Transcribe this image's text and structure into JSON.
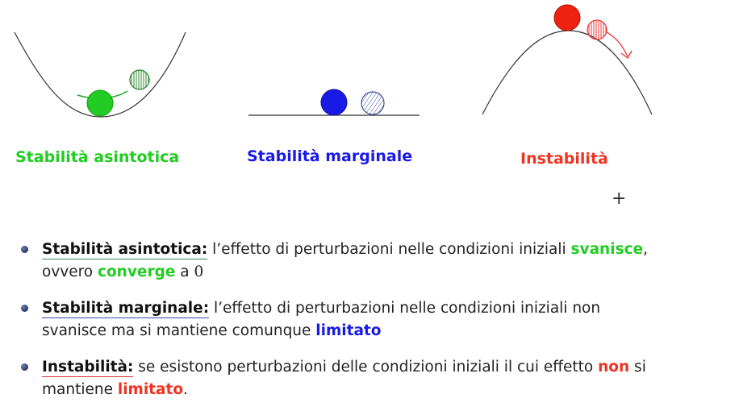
{
  "colors": {
    "green": "#22cc22",
    "blue": "#1a1ae6",
    "red": "#ee3322"
  },
  "captions": {
    "asymptotic": "Stabilità asintotica",
    "marginal": "Stabilità marginale",
    "instability": "Instabilità"
  },
  "cursor_glyph": "+",
  "bullets": [
    {
      "term": "Stabilità asintotica:",
      "t1": " l’effetto di perturbazioni nelle condizioni iniziali ",
      "h1": "svanisce",
      "t2": ",",
      "t3": "ovvero ",
      "h2": "converge",
      "t4": " a ",
      "t5": "0"
    },
    {
      "term": "Stabilità marginale:",
      "t1": " l’effetto di perturbazioni nelle condizioni iniziali non",
      "t2": "svanisce ma si mantiene comunque ",
      "h1": "limitato"
    },
    {
      "term": "Instabilità:",
      "t1": " se esistono perturbazioni delle condizioni iniziali il cui effetto ",
      "h1": "non",
      "t2": " si",
      "t3": "mantiene ",
      "h2": "limitato",
      "t4": "."
    }
  ]
}
